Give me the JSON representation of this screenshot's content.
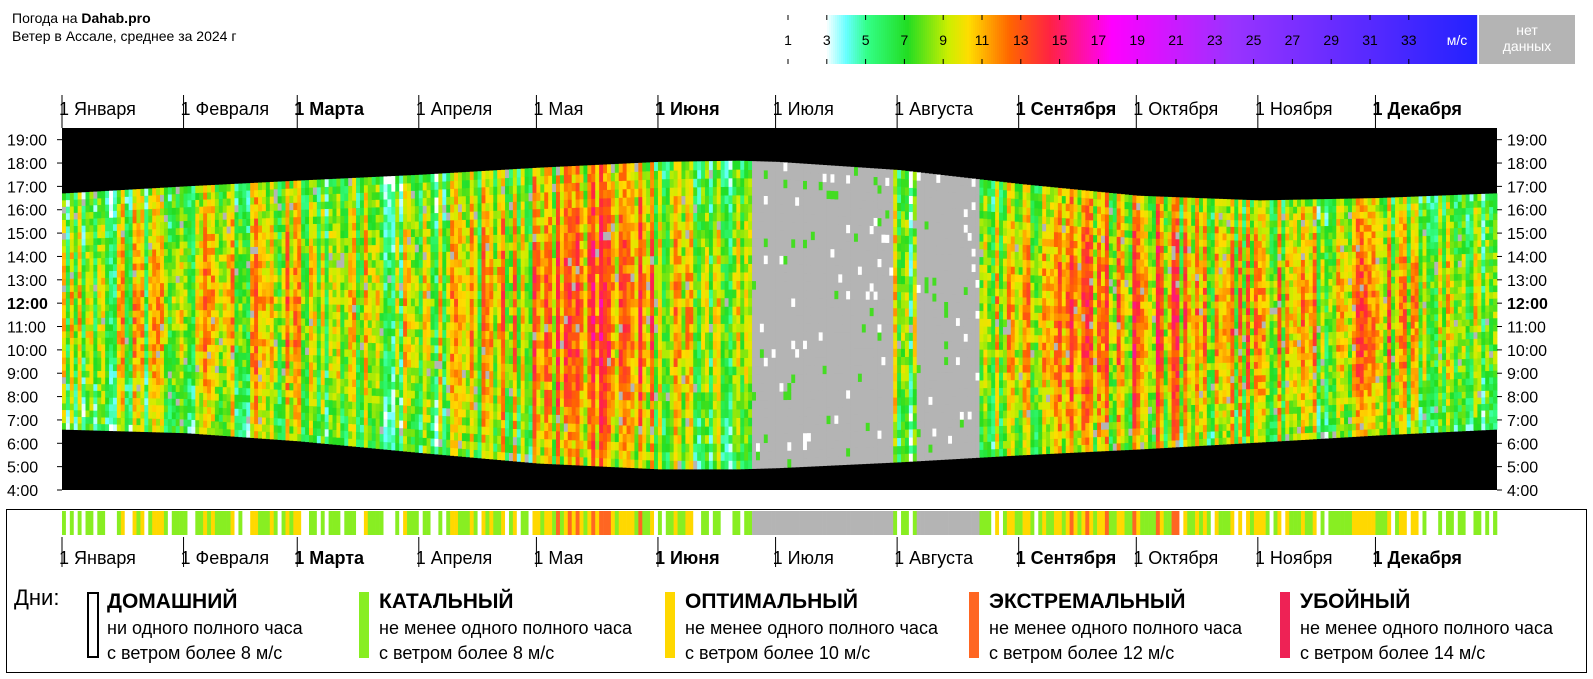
{
  "header": {
    "line1_prefix": "Погода на ",
    "line1_brand": "Dahab.pro",
    "line2": "Ветер в Ассале, среднее за 2024 г"
  },
  "scale_legend": {
    "ticks": [
      "1",
      "3",
      "5",
      "7",
      "9",
      "11",
      "13",
      "15",
      "17",
      "19",
      "21",
      "23",
      "25",
      "27",
      "29",
      "31",
      "33"
    ],
    "unit": "м/с",
    "no_data_line1": "нет",
    "no_data_line2": "данных",
    "stops": [
      {
        "v": 1,
        "color": "#ffffff"
      },
      {
        "v": 3,
        "color": "#ffffff"
      },
      {
        "v": 4,
        "color": "#66ffff"
      },
      {
        "v": 5,
        "color": "#33ff88"
      },
      {
        "v": 7,
        "color": "#22dd22"
      },
      {
        "v": 9,
        "color": "#ccee00"
      },
      {
        "v": 10,
        "color": "#ffdd00"
      },
      {
        "v": 12,
        "color": "#ff6600"
      },
      {
        "v": 14,
        "color": "#ff2244"
      },
      {
        "v": 17,
        "color": "#ff00ff"
      },
      {
        "v": 23,
        "color": "#9933ff"
      },
      {
        "v": 35,
        "color": "#2222ff"
      }
    ],
    "no_data_color": "#b4b4b4"
  },
  "chart_data": {
    "type": "heatmap",
    "title": "Ветер в Ассале, среднее за 2024 г",
    "x_axis": "day of year 2024",
    "months": [
      {
        "label": "1 Января",
        "bold": false,
        "day": 0
      },
      {
        "label": "1 Февраля",
        "bold": false,
        "day": 31
      },
      {
        "label": "1 Марта",
        "bold": true,
        "day": 60
      },
      {
        "label": "1 Апреля",
        "bold": false,
        "day": 91
      },
      {
        "label": "1 Мая",
        "bold": false,
        "day": 121
      },
      {
        "label": "1 Июня",
        "bold": true,
        "day": 152
      },
      {
        "label": "1 Июля",
        "bold": false,
        "day": 182
      },
      {
        "label": "1 Августа",
        "bold": false,
        "day": 213
      },
      {
        "label": "1 Сентября",
        "bold": true,
        "day": 244
      },
      {
        "label": "1 Октября",
        "bold": false,
        "day": 274
      },
      {
        "label": "1 Ноября",
        "bold": false,
        "day": 305
      },
      {
        "label": "1 Декабря",
        "bold": true,
        "day": 335
      }
    ],
    "hours": [
      {
        "label": "19:00",
        "bold": false
      },
      {
        "label": "18:00",
        "bold": false
      },
      {
        "label": "17:00",
        "bold": false
      },
      {
        "label": "16:00",
        "bold": false
      },
      {
        "label": "15:00",
        "bold": false
      },
      {
        "label": "14:00",
        "bold": false
      },
      {
        "label": "13:00",
        "bold": false
      },
      {
        "label": "12:00",
        "bold": true
      },
      {
        "label": "11:00",
        "bold": false
      },
      {
        "label": "10:00",
        "bold": false
      },
      {
        "label": "9:00",
        "bold": false
      },
      {
        "label": "8:00",
        "bold": false
      },
      {
        "label": "7:00",
        "bold": false
      },
      {
        "label": "6:00",
        "bold": false
      },
      {
        "label": "5:00",
        "bold": false
      },
      {
        "label": "4:00",
        "bold": false
      }
    ],
    "y_range_hours": [
      4,
      19.5
    ],
    "days_in_year": 366,
    "daylight_hours": {
      "day": [
        0,
        31,
        60,
        91,
        121,
        152,
        172,
        182,
        213,
        244,
        274,
        305,
        335,
        365
      ],
      "sunrise": [
        6.6,
        6.45,
        6.1,
        5.6,
        5.15,
        4.9,
        4.9,
        4.95,
        5.2,
        5.5,
        5.75,
        6.05,
        6.35,
        6.6
      ],
      "sunset": [
        16.7,
        17.0,
        17.25,
        17.5,
        17.8,
        18.05,
        18.1,
        18.05,
        17.7,
        17.1,
        16.6,
        16.4,
        16.5,
        16.7
      ]
    },
    "wind_profile_mps": {
      "day": [
        0,
        15,
        30,
        45,
        60,
        80,
        100,
        120,
        135,
        150,
        165,
        180,
        200,
        215,
        230,
        245,
        260,
        275,
        290,
        305,
        320,
        335,
        350,
        365
      ],
      "level": [
        7,
        8,
        8,
        8.5,
        9,
        7,
        8,
        9.5,
        11,
        9.5,
        8,
        7,
        6,
        7,
        8,
        9,
        10,
        10.5,
        9.5,
        9,
        8.5,
        9.5,
        8.5,
        7.5
      ]
    },
    "no_data_ranges": [
      [
        176,
        211
      ],
      [
        218,
        233
      ]
    ],
    "notes": "Heatmap colour = mean wind speed per hour per day in m/s; black = night; grey = no data."
  },
  "days_section": {
    "label": "Дни:",
    "categories": [
      {
        "title": "ДОМАШНИЙ",
        "line1": "ни одного полного часа",
        "line2": "с ветром более 8 м/с",
        "color": "#ffffff",
        "outline": true
      },
      {
        "title": "КАТАЛЬНЫЙ",
        "line1": "не менее одного полного часа",
        "line2": "с ветром более 8 м/с",
        "color": "#88ee22",
        "outline": false
      },
      {
        "title": "ОПТИМАЛЬНЫЙ",
        "line1": "не менее одного полного часа",
        "line2": "с ветром более 10 м/с",
        "color": "#ffd800",
        "outline": false
      },
      {
        "title": "ЭКСТРЕМАЛЬНЫЙ",
        "line1": "не менее одного полного часа",
        "line2": "с ветром более 12 м/с",
        "color": "#ff6622",
        "outline": false
      },
      {
        "title": "УБОЙНЫЙ",
        "line1": "не менее одного полного часа",
        "line2": "с ветром более 14 м/с",
        "color": "#ee2255",
        "outline": false
      }
    ]
  }
}
